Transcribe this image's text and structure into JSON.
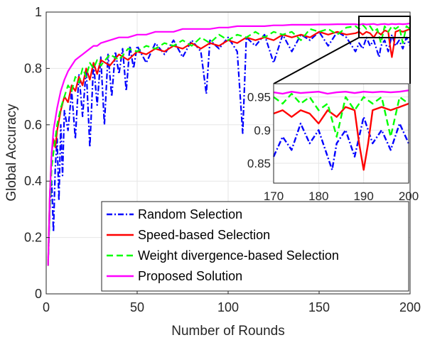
{
  "chart_data": {
    "type": "line",
    "xlabel": "Number of Rounds",
    "ylabel": "Global Accuracy",
    "xlim": [
      0,
      200
    ],
    "ylim": [
      0,
      1
    ],
    "xticks": [
      "0",
      "50",
      "100",
      "150",
      "200"
    ],
    "yticks": [
      "0",
      "0.2",
      "0.4",
      "0.6",
      "0.8",
      "1"
    ],
    "grid": true,
    "legend_position": "bottom-right",
    "series": [
      {
        "name": "Random Selection",
        "color": "#0000ff",
        "style": "dash-dot",
        "x": [
          1,
          2,
          3,
          4,
          5,
          6,
          7,
          8,
          9,
          10,
          12,
          14,
          16,
          18,
          20,
          22,
          24,
          26,
          28,
          30,
          32,
          34,
          36,
          38,
          40,
          42,
          44,
          46,
          48,
          50,
          55,
          60,
          65,
          70,
          75,
          80,
          85,
          88,
          90,
          95,
          100,
          105,
          108,
          110,
          115,
          120,
          125,
          130,
          135,
          140,
          145,
          150,
          155,
          160,
          165,
          170,
          172,
          174,
          176,
          178,
          180,
          182,
          183,
          184,
          186,
          188,
          190,
          192,
          194,
          196,
          198,
          200
        ],
        "y": [
          0.1,
          0.3,
          0.4,
          0.22,
          0.45,
          0.55,
          0.33,
          0.6,
          0.42,
          0.65,
          0.58,
          0.72,
          0.55,
          0.78,
          0.63,
          0.8,
          0.52,
          0.82,
          0.67,
          0.84,
          0.6,
          0.85,
          0.7,
          0.86,
          0.78,
          0.87,
          0.72,
          0.88,
          0.8,
          0.88,
          0.82,
          0.89,
          0.85,
          0.9,
          0.84,
          0.9,
          0.86,
          0.71,
          0.9,
          0.87,
          0.91,
          0.86,
          0.57,
          0.91,
          0.88,
          0.92,
          0.82,
          0.92,
          0.86,
          0.92,
          0.9,
          0.93,
          0.88,
          0.93,
          0.91,
          0.86,
          0.89,
          0.87,
          0.91,
          0.88,
          0.9,
          0.86,
          0.84,
          0.88,
          0.9,
          0.86,
          0.92,
          0.88,
          0.9,
          0.87,
          0.91,
          0.88
        ]
      },
      {
        "name": "Speed-based Selection",
        "color": "#ff0000",
        "style": "solid",
        "x": [
          1,
          2,
          3,
          4,
          5,
          6,
          8,
          10,
          12,
          14,
          16,
          18,
          20,
          22,
          24,
          26,
          28,
          30,
          35,
          40,
          45,
          50,
          55,
          60,
          65,
          70,
          75,
          80,
          85,
          90,
          95,
          100,
          105,
          110,
          115,
          120,
          125,
          130,
          135,
          140,
          145,
          150,
          155,
          160,
          165,
          170,
          172,
          174,
          176,
          178,
          180,
          182,
          184,
          186,
          188,
          189,
          190,
          191,
          192,
          194,
          196,
          198,
          200
        ],
        "y": [
          0.1,
          0.35,
          0.5,
          0.55,
          0.52,
          0.58,
          0.65,
          0.7,
          0.68,
          0.74,
          0.72,
          0.77,
          0.74,
          0.8,
          0.76,
          0.82,
          0.78,
          0.83,
          0.81,
          0.85,
          0.83,
          0.86,
          0.85,
          0.87,
          0.86,
          0.88,
          0.87,
          0.89,
          0.87,
          0.89,
          0.88,
          0.9,
          0.89,
          0.91,
          0.9,
          0.91,
          0.9,
          0.92,
          0.91,
          0.92,
          0.91,
          0.93,
          0.92,
          0.93,
          0.92,
          0.925,
          0.93,
          0.92,
          0.93,
          0.925,
          0.91,
          0.93,
          0.92,
          0.935,
          0.93,
          0.88,
          0.84,
          0.88,
          0.93,
          0.935,
          0.93,
          0.935,
          0.94
        ]
      },
      {
        "name": "Weight divergence-based Selection",
        "color": "#00ff00",
        "style": "dashed",
        "x": [
          1,
          2,
          3,
          4,
          5,
          6,
          8,
          10,
          12,
          14,
          16,
          18,
          20,
          22,
          24,
          26,
          28,
          30,
          35,
          40,
          45,
          50,
          55,
          60,
          65,
          70,
          75,
          80,
          85,
          90,
          95,
          100,
          105,
          110,
          115,
          120,
          125,
          130,
          135,
          140,
          145,
          150,
          155,
          160,
          165,
          170,
          172,
          174,
          176,
          178,
          180,
          182,
          184,
          186,
          188,
          190,
          192,
          194,
          196,
          198,
          200
        ],
        "y": [
          0.1,
          0.3,
          0.45,
          0.5,
          0.55,
          0.6,
          0.66,
          0.7,
          0.74,
          0.72,
          0.77,
          0.75,
          0.8,
          0.77,
          0.82,
          0.8,
          0.83,
          0.81,
          0.85,
          0.83,
          0.87,
          0.86,
          0.88,
          0.87,
          0.89,
          0.88,
          0.9,
          0.88,
          0.91,
          0.89,
          0.92,
          0.9,
          0.92,
          0.91,
          0.93,
          0.91,
          0.93,
          0.92,
          0.93,
          0.9,
          0.94,
          0.93,
          0.94,
          0.92,
          0.945,
          0.95,
          0.94,
          0.955,
          0.94,
          0.95,
          0.93,
          0.94,
          0.89,
          0.95,
          0.93,
          0.95,
          0.94,
          0.95,
          0.89,
          0.95,
          0.94
        ]
      },
      {
        "name": "Proposed Solution",
        "color": "#ff00ff",
        "style": "solid",
        "x": [
          1,
          2,
          3,
          4,
          5,
          6,
          8,
          10,
          12,
          14,
          16,
          18,
          20,
          22,
          24,
          26,
          28,
          30,
          35,
          40,
          45,
          50,
          55,
          60,
          65,
          70,
          75,
          80,
          85,
          90,
          95,
          100,
          105,
          110,
          115,
          120,
          125,
          130,
          135,
          140,
          145,
          150,
          155,
          160,
          165,
          170,
          172,
          174,
          176,
          178,
          180,
          182,
          184,
          186,
          188,
          190,
          192,
          194,
          196,
          198,
          200
        ],
        "y": [
          0.1,
          0.35,
          0.5,
          0.58,
          0.62,
          0.66,
          0.72,
          0.76,
          0.79,
          0.81,
          0.83,
          0.84,
          0.85,
          0.86,
          0.87,
          0.88,
          0.88,
          0.89,
          0.9,
          0.91,
          0.91,
          0.92,
          0.92,
          0.93,
          0.93,
          0.93,
          0.94,
          0.94,
          0.94,
          0.94,
          0.945,
          0.945,
          0.95,
          0.95,
          0.95,
          0.95,
          0.953,
          0.953,
          0.955,
          0.955,
          0.955,
          0.956,
          0.956,
          0.957,
          0.957,
          0.957,
          0.955,
          0.958,
          0.956,
          0.957,
          0.958,
          0.955,
          0.957,
          0.958,
          0.956,
          0.958,
          0.957,
          0.958,
          0.957,
          0.958,
          0.96
        ]
      }
    ],
    "inset": {
      "xlim": [
        170,
        200
      ],
      "ylim": [
        0.82,
        0.97
      ],
      "xticks": [
        "170",
        "180",
        "190",
        "200"
      ],
      "yticks": [
        "0.85",
        "0.9",
        "0.95"
      ]
    }
  }
}
